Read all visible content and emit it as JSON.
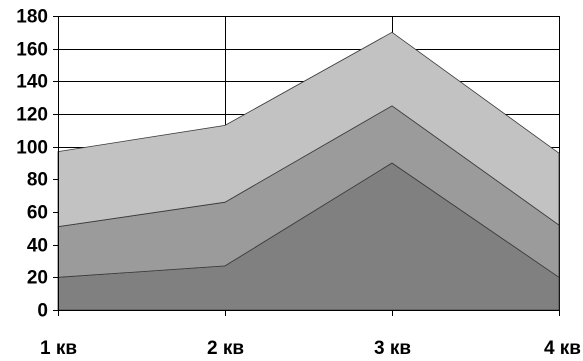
{
  "chart_data": {
    "type": "area",
    "stacked": true,
    "categories": [
      "1 кв",
      "2 кв",
      "3 кв",
      "4 кв"
    ],
    "series": [
      {
        "values": [
          20,
          27,
          90,
          20
        ],
        "color": "#808080"
      },
      {
        "values": [
          31,
          39,
          35,
          32
        ],
        "color": "#9b9b9b"
      },
      {
        "values": [
          46,
          47,
          45,
          44
        ],
        "color": "#c2c2c2"
      }
    ],
    "title": "",
    "xlabel": "",
    "ylabel": "",
    "ylim": [
      0,
      180
    ],
    "y_ticks": [
      0,
      20,
      40,
      60,
      80,
      100,
      120,
      140,
      160,
      180
    ],
    "grid": true,
    "legend": "none"
  }
}
